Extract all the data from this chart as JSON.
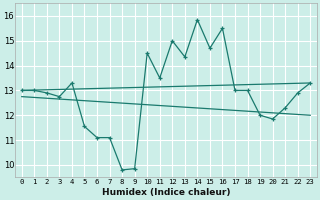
{
  "title": "",
  "xlabel": "Humidex (Indice chaleur)",
  "background_color": "#cceee8",
  "grid_color": "#ffffff",
  "line_color": "#1a7a6e",
  "xlim": [
    -0.5,
    23.5
  ],
  "ylim": [
    9.5,
    16.5
  ],
  "xticks": [
    0,
    1,
    2,
    3,
    4,
    5,
    6,
    7,
    8,
    9,
    10,
    11,
    12,
    13,
    14,
    15,
    16,
    17,
    18,
    19,
    20,
    21,
    22,
    23
  ],
  "yticks": [
    10,
    11,
    12,
    13,
    14,
    15,
    16
  ],
  "line1_x": [
    0,
    1,
    2,
    3,
    4,
    5,
    6,
    7,
    8,
    9,
    10,
    11,
    12,
    13,
    14,
    15,
    16,
    17,
    18,
    19,
    20,
    21,
    22,
    23
  ],
  "line1_y": [
    13.0,
    13.0,
    12.9,
    12.75,
    13.3,
    11.55,
    11.1,
    11.1,
    9.8,
    9.85,
    14.5,
    13.5,
    15.0,
    14.35,
    15.85,
    14.7,
    15.5,
    13.0,
    13.0,
    12.0,
    11.85,
    12.3,
    12.9,
    13.3
  ],
  "line2_x": [
    0,
    23
  ],
  "line2_y": [
    13.0,
    13.3
  ],
  "line3_x": [
    0,
    23
  ],
  "line3_y": [
    12.75,
    12.0
  ]
}
